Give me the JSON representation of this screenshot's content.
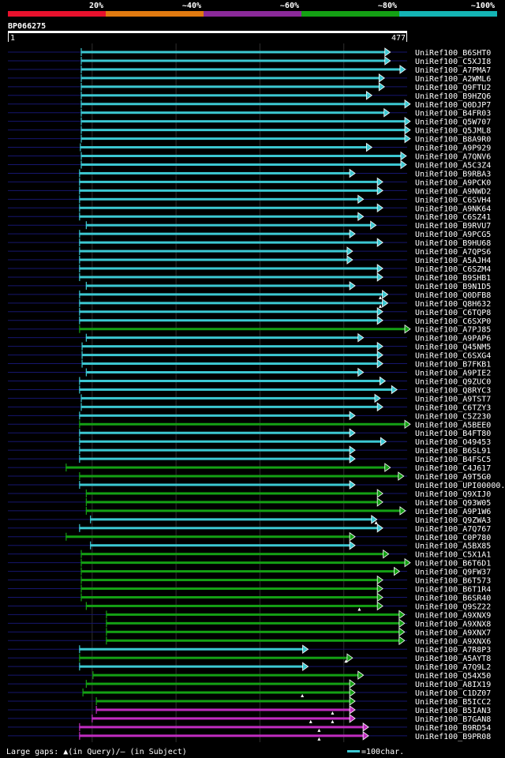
{
  "query_id": "BP066275",
  "scale_labels": [
    "20%",
    "~40%",
    "~60%",
    "~80%",
    "~100%"
  ],
  "scale_colors": [
    "#e8112d",
    "#e07a10",
    "#8b2a9a",
    "#14a014",
    "#14b4b4"
  ],
  "ruler_start": "1",
  "ruler_end": "477",
  "footer_text": "Large gaps: ▲(in Query)/– (in Subject)",
  "legend_text": "=100char.",
  "chart_data": {
    "type": "alignment-hits",
    "query_length": 477,
    "xlim": [
      1,
      477
    ],
    "columns": [
      "label",
      "color",
      "q_start",
      "q_end",
      "gaps"
    ],
    "hits": [
      [
        "UniRef100_B6SHT0",
        "cyan",
        88,
        457,
        []
      ],
      [
        "UniRef100_C5XJI8",
        "cyan",
        88,
        457,
        []
      ],
      [
        "UniRef100_A7PMA7",
        "cyan",
        88,
        475,
        []
      ],
      [
        "UniRef100_A2WML6",
        "cyan",
        88,
        450,
        []
      ],
      [
        "UniRef100_Q9FTU2",
        "cyan",
        88,
        450,
        []
      ],
      [
        "UniRef100_B9HZQ6",
        "cyan",
        88,
        435,
        []
      ],
      [
        "UniRef100_Q0DJP7",
        "cyan",
        88,
        486,
        []
      ],
      [
        "UniRef100_B4FR03",
        "cyan",
        88,
        456,
        []
      ],
      [
        "UniRef100_Q5W707",
        "cyan",
        88,
        486,
        []
      ],
      [
        "UniRef100_Q5JML8",
        "cyan",
        88,
        486,
        []
      ],
      [
        "UniRef100_B8A9R0",
        "cyan",
        88,
        486,
        []
      ],
      [
        "UniRef100_A9P929",
        "cyan",
        87,
        435,
        []
      ],
      [
        "UniRef100_A7QNV6",
        "cyan",
        88,
        476,
        []
      ],
      [
        "UniRef100_A5C3Z4",
        "cyan",
        88,
        476,
        []
      ],
      [
        "UniRef100_B9RBA3",
        "cyan",
        86,
        415,
        []
      ],
      [
        "UniRef100_A9PCK0",
        "cyan",
        86,
        448,
        []
      ],
      [
        "UniRef100_A9NWD2",
        "cyan",
        86,
        448,
        []
      ],
      [
        "UniRef100_C6SVH4",
        "cyan",
        86,
        425,
        []
      ],
      [
        "UniRef100_A9NK64",
        "cyan",
        86,
        448,
        []
      ],
      [
        "UniRef100_C6SZ41",
        "cyan",
        86,
        425,
        []
      ],
      [
        "UniRef100_B9RVU7",
        "cyan",
        94,
        440,
        []
      ],
      [
        "UniRef100_A9PCG5",
        "cyan",
        86,
        415,
        []
      ],
      [
        "UniRef100_B9HU68",
        "cyan",
        86,
        448,
        []
      ],
      [
        "UniRef100_A7QPS6",
        "cyan",
        86,
        412,
        []
      ],
      [
        "UniRef100_A5AJH4",
        "cyan",
        86,
        412,
        []
      ],
      [
        "UniRef100_C6SZM4",
        "cyan",
        86,
        448,
        []
      ],
      [
        "UniRef100_B9SHB1",
        "cyan",
        86,
        448,
        []
      ],
      [
        "UniRef100_B9N1D5",
        "cyan",
        94,
        415,
        []
      ],
      [
        "UniRef100_Q0DFB8",
        "cyan",
        86,
        454,
        [
          445
        ]
      ],
      [
        "UniRef100_Q8H632",
        "cyan",
        86,
        454,
        [
          445
        ]
      ],
      [
        "UniRef100_C6TQP8",
        "cyan",
        86,
        448,
        []
      ],
      [
        "UniRef100_C6SXP0",
        "cyan",
        86,
        448,
        []
      ],
      [
        "UniRef100_A7PJ85",
        "green",
        86,
        486,
        []
      ],
      [
        "UniRef100_A9PAP6",
        "cyan",
        94,
        425,
        []
      ],
      [
        "UniRef100_Q45NM5",
        "cyan",
        89,
        448,
        []
      ],
      [
        "UniRef100_C6SXG4",
        "cyan",
        89,
        448,
        []
      ],
      [
        "UniRef100_B7FKB1",
        "cyan",
        89,
        448,
        []
      ],
      [
        "UniRef100_A9PIE2",
        "cyan",
        94,
        425,
        []
      ],
      [
        "UniRef100_Q9ZUC0",
        "cyan",
        86,
        451,
        []
      ],
      [
        "UniRef100_Q8RYC3",
        "cyan",
        86,
        465,
        []
      ],
      [
        "UniRef100_A9TST7",
        "cyan",
        88,
        445,
        []
      ],
      [
        "UniRef100_C6TZY3",
        "cyan",
        88,
        448,
        []
      ],
      [
        "UniRef100_C5Z230",
        "cyan",
        86,
        415,
        []
      ],
      [
        "UniRef100_A5BEE0",
        "green",
        86,
        487,
        []
      ],
      [
        "UniRef100_B4FT80",
        "cyan",
        86,
        415,
        []
      ],
      [
        "UniRef100_O49453",
        "cyan",
        86,
        452,
        []
      ],
      [
        "UniRef100_B6SL91",
        "cyan",
        86,
        415,
        []
      ],
      [
        "UniRef100_B4FSC5",
        "cyan",
        86,
        415,
        []
      ],
      [
        "UniRef100_C4J617",
        "green",
        70,
        457,
        []
      ],
      [
        "UniRef100_A9T5G0",
        "green",
        86,
        473,
        []
      ],
      [
        "UniRef100_UPI00000...",
        "cyan",
        86,
        415,
        []
      ],
      [
        "UniRef100_Q9XIJ0",
        "green",
        94,
        448,
        []
      ],
      [
        "UniRef100_Q93W05",
        "green",
        94,
        448,
        []
      ],
      [
        "UniRef100_A9P1W6",
        "green",
        94,
        475,
        []
      ],
      [
        "UniRef100_Q9ZWA3",
        "cyan",
        99,
        441,
        [
          440
        ]
      ],
      [
        "UniRef100_A7Q767",
        "cyan",
        86,
        448,
        []
      ],
      [
        "UniRef100_C0P780",
        "green",
        70,
        415,
        []
      ],
      [
        "UniRef100_A5BX85",
        "cyan",
        99,
        415,
        []
      ],
      [
        "UniRef100_C5X1A1",
        "green",
        88,
        455,
        []
      ],
      [
        "UniRef100_B6T6D1",
        "green",
        88,
        484,
        []
      ],
      [
        "UniRef100_Q9FW37",
        "green",
        88,
        468,
        []
      ],
      [
        "UniRef100_B6T573",
        "green",
        88,
        448,
        []
      ],
      [
        "UniRef100_B6T1R4",
        "green",
        88,
        448,
        []
      ],
      [
        "UniRef100_B6SR40",
        "green",
        88,
        448,
        []
      ],
      [
        "UniRef100_Q9SZ22",
        "green",
        94,
        448,
        [
          420
        ]
      ],
      [
        "UniRef100_A9XNX9",
        "green",
        118,
        474,
        []
      ],
      [
        "UniRef100_A9XNX8",
        "green",
        118,
        474,
        []
      ],
      [
        "UniRef100_A9XNX7",
        "green",
        118,
        474,
        []
      ],
      [
        "UniRef100_A9XNX6",
        "green",
        118,
        474,
        []
      ],
      [
        "UniRef100_A7R8P3",
        "cyan",
        86,
        359,
        []
      ],
      [
        "UniRef100_A5AYT8",
        "green",
        86,
        412,
        [
          404
        ]
      ],
      [
        "UniRef100_A7Q9L2",
        "cyan",
        86,
        359,
        []
      ],
      [
        "UniRef100_Q54X50",
        "green",
        102,
        425,
        []
      ],
      [
        "UniRef100_A8IX19",
        "green",
        94,
        415,
        []
      ],
      [
        "UniRef100_C1DZ07",
        "green",
        90,
        415,
        [
          352
        ]
      ],
      [
        "UniRef100_B5ICC2",
        "green",
        106,
        415,
        []
      ],
      [
        "UniRef100_B5IAN3",
        "magenta",
        106,
        415,
        [
          388
        ]
      ],
      [
        "UniRef100_B7GAN8",
        "magenta",
        101,
        415,
        [
          362,
          388
        ]
      ],
      [
        "UniRef100_B9RD54",
        "magenta",
        86,
        431,
        [
          372
        ]
      ],
      [
        "UniRef100_B9PR08",
        "magenta",
        86,
        431,
        [
          372
        ]
      ]
    ],
    "legend": {
      "scale_char": 100,
      "gap_query": "▲",
      "gap_subject": "–"
    },
    "grid": true
  }
}
